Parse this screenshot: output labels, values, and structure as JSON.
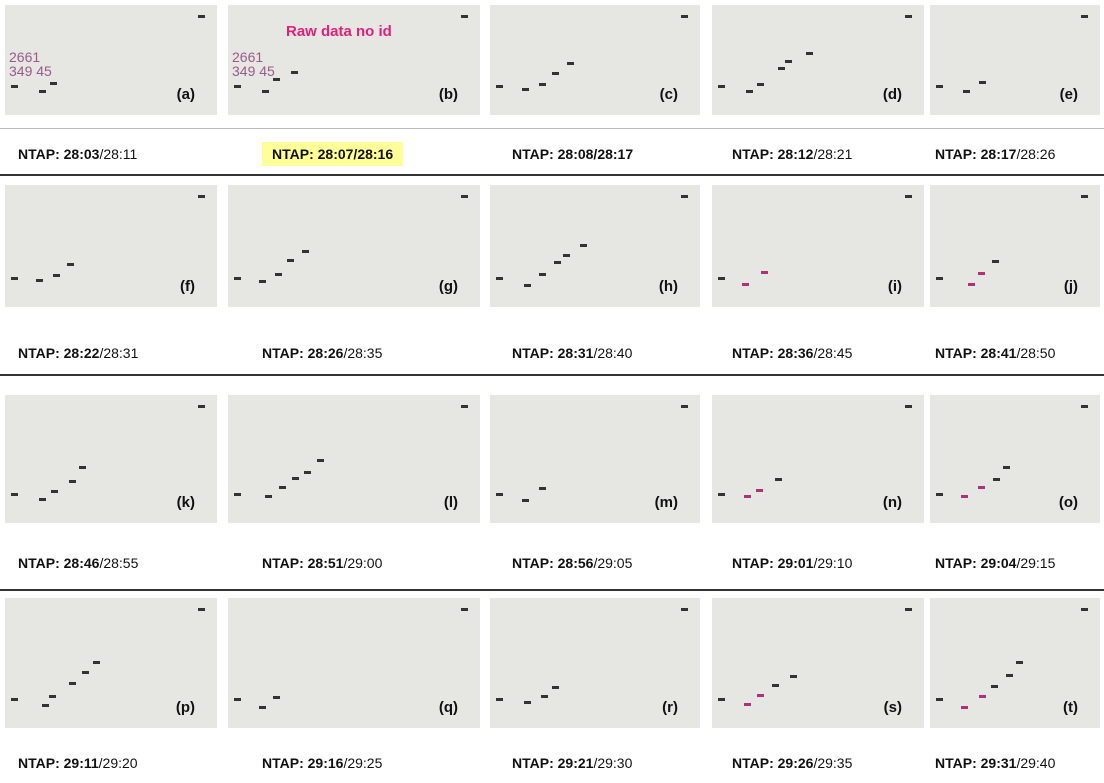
{
  "rows": [
    {
      "panels": [
        {
          "label": "(a)",
          "caption": [
            {
              "text": "NTAP: 28:03",
              "bold": true
            },
            {
              "text": "/28:11",
              "bold": false
            }
          ],
          "annotations": [
            "2661",
            "349 45"
          ]
        },
        {
          "label": "(b)",
          "caption": [
            {
              "text": "NTAP: 28:07/28:16",
              "bold": true
            }
          ],
          "highlight": true,
          "title": "Raw data no id",
          "annotations": [
            "2661",
            "349 45"
          ]
        },
        {
          "label": "(c)",
          "caption": [
            {
              "text": "NTAP: 28:08/28:17",
              "bold": true
            }
          ]
        },
        {
          "label": "(d)",
          "caption": [
            {
              "text": "NTAP: 28:12",
              "bold": true
            },
            {
              "text": "/28:21",
              "bold": false
            }
          ]
        },
        {
          "label": "(e)",
          "caption": [
            {
              "text": "NTAP: 28:17",
              "bold": true
            },
            {
              "text": "/28:26",
              "bold": false
            }
          ]
        }
      ]
    },
    {
      "panels": [
        {
          "label": "(f)",
          "caption": [
            {
              "text": "NTAP: 28:22",
              "bold": true
            },
            {
              "text": "/28:31",
              "bold": false
            }
          ]
        },
        {
          "label": "(g)",
          "caption": [
            {
              "text": "NTAP: 28:26",
              "bold": true
            },
            {
              "text": "/28:35",
              "bold": false
            }
          ]
        },
        {
          "label": "(h)",
          "caption": [
            {
              "text": "NTAP: 28:31",
              "bold": true
            },
            {
              "text": "/28:40",
              "bold": false
            }
          ]
        },
        {
          "label": "(i)",
          "caption": [
            {
              "text": "NTAP: 28:36",
              "bold": true
            },
            {
              "text": "/28:45",
              "bold": false
            }
          ]
        },
        {
          "label": "(j)",
          "caption": [
            {
              "text": "NTAP: 28:41",
              "bold": true
            },
            {
              "text": "/28:50",
              "bold": false
            }
          ]
        }
      ]
    },
    {
      "panels": [
        {
          "label": "(k)",
          "caption": [
            {
              "text": "NTAP: 28:46",
              "bold": true
            },
            {
              "text": "/28:55",
              "bold": false
            }
          ]
        },
        {
          "label": "(l)",
          "caption": [
            {
              "text": "NTAP: 28:51",
              "bold": true
            },
            {
              "text": "/29:00",
              "bold": false
            }
          ]
        },
        {
          "label": "(m)",
          "caption": [
            {
              "text": "NTAP: 28:56",
              "bold": true
            },
            {
              "text": "/29:05",
              "bold": false
            }
          ]
        },
        {
          "label": "(n)",
          "caption": [
            {
              "text": "NTAP: 29:01",
              "bold": true
            },
            {
              "text": "/29:10",
              "bold": false
            }
          ]
        },
        {
          "label": "(o)",
          "caption": [
            {
              "text": "NTAP: 29:04",
              "bold": true
            },
            {
              "text": "/29:15",
              "bold": false
            }
          ]
        }
      ]
    },
    {
      "panels": [
        {
          "label": "(p)",
          "caption": [
            {
              "text": "NTAP: 29:11",
              "bold": true
            },
            {
              "text": "/29:20",
              "bold": false
            }
          ]
        },
        {
          "label": "(q)",
          "caption": [
            {
              "text": "NTAP: 29:16",
              "bold": true
            },
            {
              "text": "/29:25",
              "bold": false
            }
          ]
        },
        {
          "label": "(r)",
          "caption": [
            {
              "text": "NTAP: 29:21",
              "bold": true
            },
            {
              "text": "/29:30",
              "bold": false
            }
          ]
        },
        {
          "label": "(s)",
          "caption": [
            {
              "text": "NTAP: 29:26",
              "bold": true
            },
            {
              "text": "/29:35",
              "bold": false
            }
          ]
        },
        {
          "label": "(t)",
          "caption": [
            {
              "text": "NTAP: 29:31",
              "bold": true
            },
            {
              "text": "/29:40",
              "bold": false
            }
          ]
        }
      ]
    }
  ]
}
